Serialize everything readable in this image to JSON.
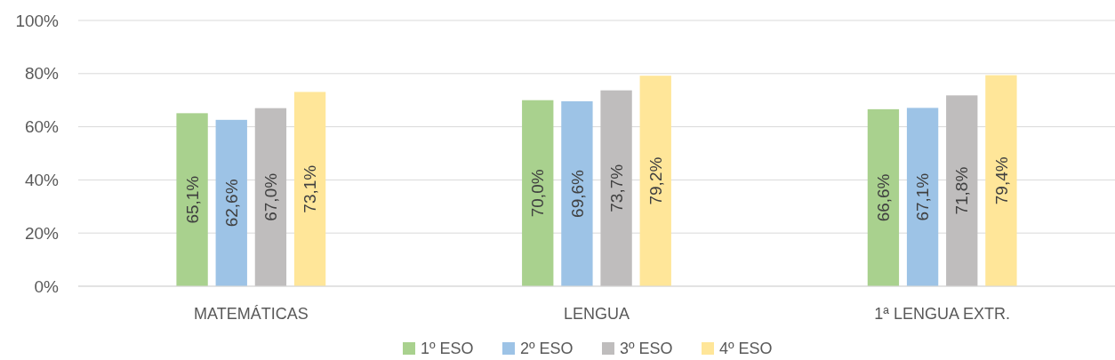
{
  "chart_data": {
    "type": "bar",
    "categories": [
      "MATEMÁTICAS",
      "LENGUA",
      "1ª LENGUA EXTR."
    ],
    "series": [
      {
        "name": "1º ESO",
        "color": "#a9d18e",
        "values": [
          65.1,
          70.0,
          66.6
        ],
        "value_labels": [
          "65,1%",
          "70,0%",
          "66,6%"
        ]
      },
      {
        "name": "2º ESO",
        "color": "#9dc3e6",
        "values": [
          62.6,
          69.6,
          67.1
        ],
        "value_labels": [
          "62,6%",
          "69,6%",
          "67,1%"
        ]
      },
      {
        "name": "3º ESO",
        "color": "#bfbdbd",
        "values": [
          67.0,
          73.7,
          71.8
        ],
        "value_labels": [
          "67,0%",
          "73,7%",
          "71,8%"
        ]
      },
      {
        "name": "4º ESO",
        "color": "#ffe699",
        "values": [
          73.1,
          79.2,
          79.4
        ],
        "value_labels": [
          "73,1%",
          "79,2%",
          "79,4%"
        ]
      }
    ],
    "ylim": [
      0,
      100
    ],
    "yticks": [
      {
        "value": 0,
        "label": "0%"
      },
      {
        "value": 20,
        "label": "20%"
      },
      {
        "value": 40,
        "label": "40%"
      },
      {
        "value": 60,
        "label": "60%"
      },
      {
        "value": 80,
        "label": "80%"
      },
      {
        "value": 100,
        "label": "100%"
      }
    ],
    "grid": "y",
    "legend": "bottom"
  }
}
